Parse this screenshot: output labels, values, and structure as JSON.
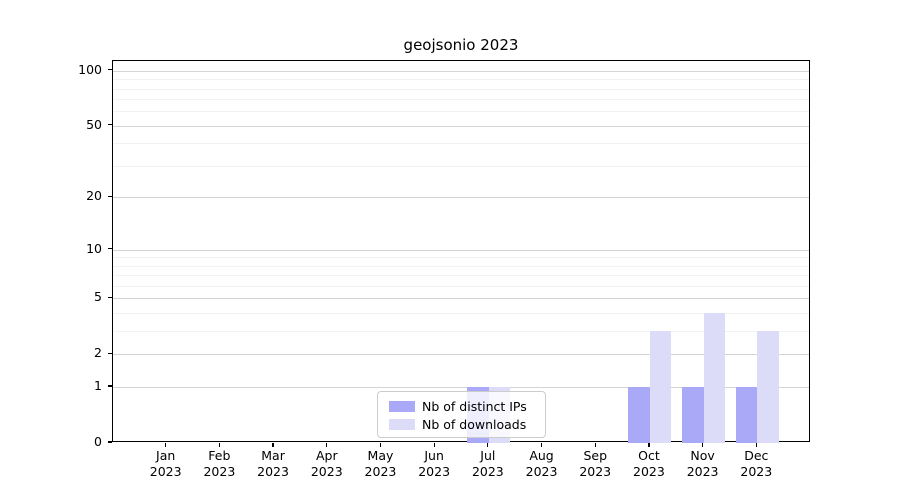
{
  "window": {
    "background": "#ffffff"
  },
  "chart_data": {
    "type": "bar",
    "title": "geojsonio 2023",
    "categories": [
      "Jan 2023",
      "Feb 2023",
      "Mar 2023",
      "Apr 2023",
      "May 2023",
      "Jun 2023",
      "Jul 2023",
      "Aug 2023",
      "Sep 2023",
      "Oct 2023",
      "Nov 2023",
      "Dec 2023"
    ],
    "series": [
      {
        "name": "Nb of distinct IPs",
        "color": "#a9a9f7",
        "values": [
          0,
          0,
          0,
          0,
          0,
          0,
          1,
          0,
          0,
          1,
          1,
          1
        ]
      },
      {
        "name": "Nb of downloads",
        "color": "#dcdcf8",
        "values": [
          0,
          0,
          0,
          0,
          0,
          0,
          1,
          0,
          0,
          3,
          4,
          3
        ]
      }
    ],
    "xlabel": "",
    "ylabel": "",
    "yscale": "log1p",
    "ylim": [
      0,
      113
    ],
    "y_major_ticks": [
      0,
      1,
      2,
      5,
      10,
      20,
      50,
      100
    ],
    "y_minor_ticks": [
      3,
      4,
      6,
      7,
      8,
      9,
      30,
      40,
      60,
      70,
      80,
      90
    ],
    "grid": "horizontal",
    "legend_position": "lower center"
  },
  "colors": {
    "grid_major": "#d4d4d4",
    "grid_minor": "#f2f2f2",
    "spine": "#000000",
    "legend_border": "#cccccc"
  }
}
